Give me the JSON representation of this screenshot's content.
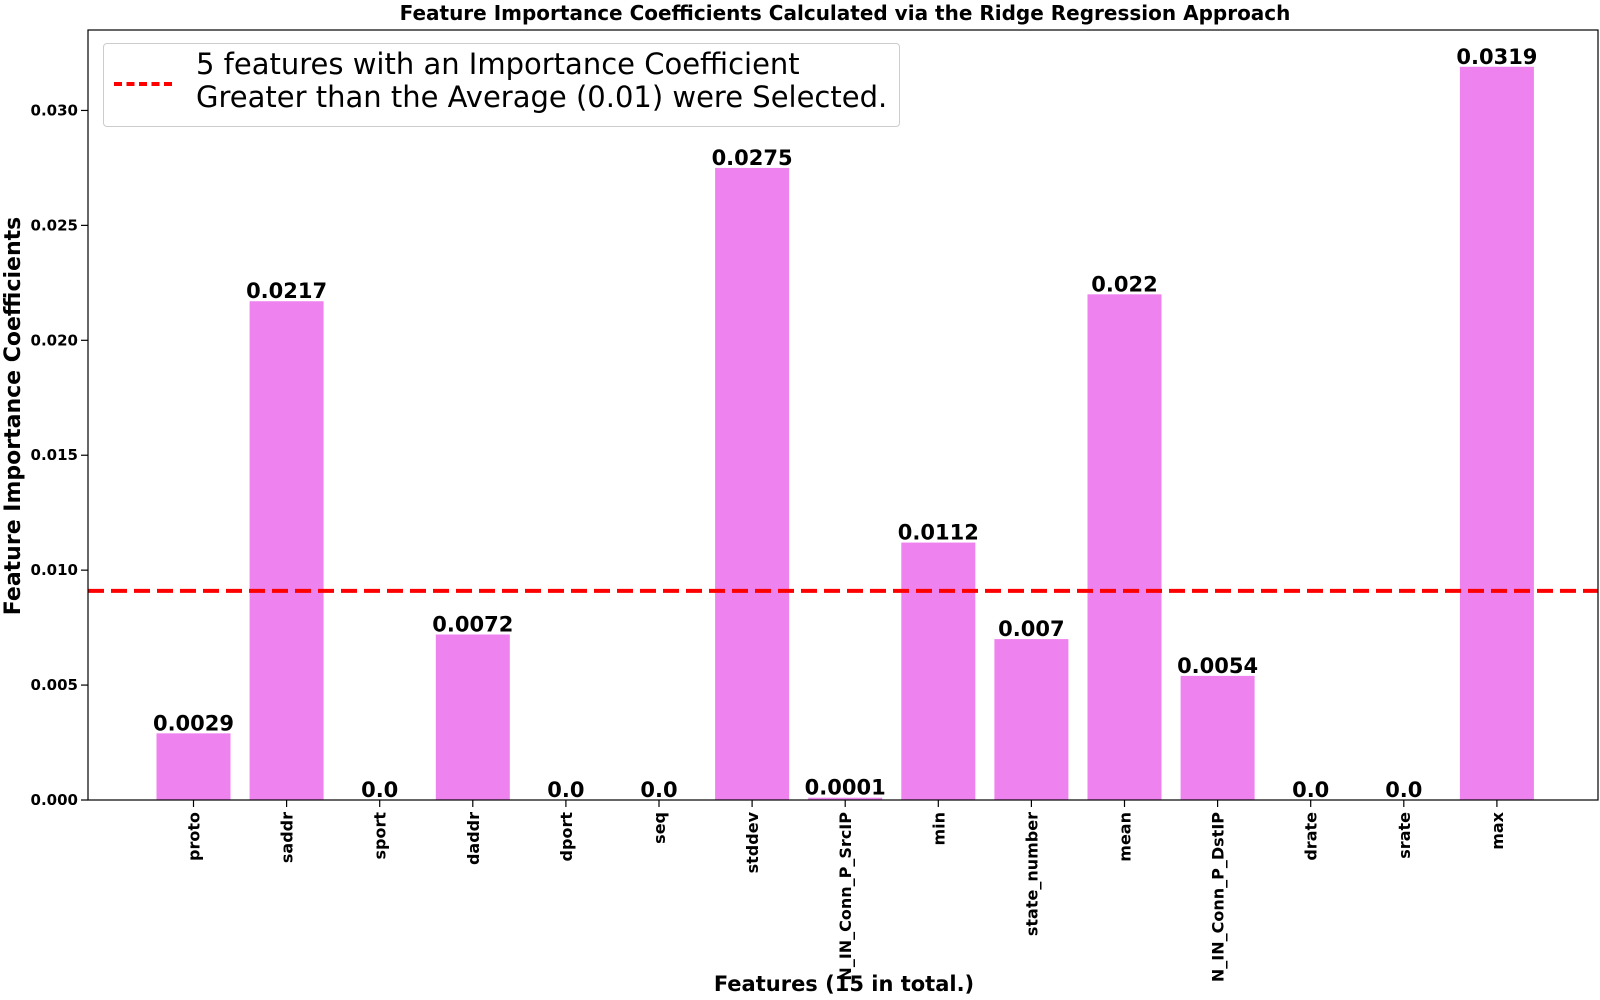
{
  "chart_data": {
    "type": "bar",
    "title": "Feature Importance Coefficients Calculated via the Ridge Regression Approach",
    "xlabel": "Features (15 in total.)",
    "ylabel": "Feature Importance Coefficients",
    "categories": [
      "proto",
      "saddr",
      "sport",
      "daddr",
      "dport",
      "seq",
      "stddev",
      "N_IN_Conn_P_SrcIP",
      "min",
      "state_number",
      "mean",
      "N_IN_Conn_P_DstIP",
      "drate",
      "srate",
      "max"
    ],
    "values": [
      0.0029,
      0.0217,
      0.0,
      0.0072,
      0.0,
      0.0,
      0.0275,
      0.0001,
      0.0112,
      0.007,
      0.022,
      0.0054,
      0.0,
      0.0,
      0.0319
    ],
    "value_labels": [
      "0.0029",
      "0.0217",
      "0.0",
      "0.0072",
      "0.0",
      "0.0",
      "0.0275",
      "0.0001",
      "0.0112",
      "0.007",
      "0.022",
      "0.0054",
      "0.0",
      "0.0",
      "0.0319"
    ],
    "ylim": [
      0,
      0.0335
    ],
    "yticks": [
      0.0,
      0.005,
      0.01,
      0.015,
      0.02,
      0.025,
      0.03
    ],
    "ytick_labels": [
      "0.000",
      "0.005",
      "0.010",
      "0.015",
      "0.020",
      "0.025",
      "0.030"
    ],
    "threshold": 0.0091,
    "bar_color": "#ee82ee",
    "threshold_color": "#ff0000",
    "legend": {
      "placement": "top-left",
      "label": "5 features with an Importance Coefficient\nGreater than the Average (0.01) were Selected."
    },
    "grid": false
  }
}
